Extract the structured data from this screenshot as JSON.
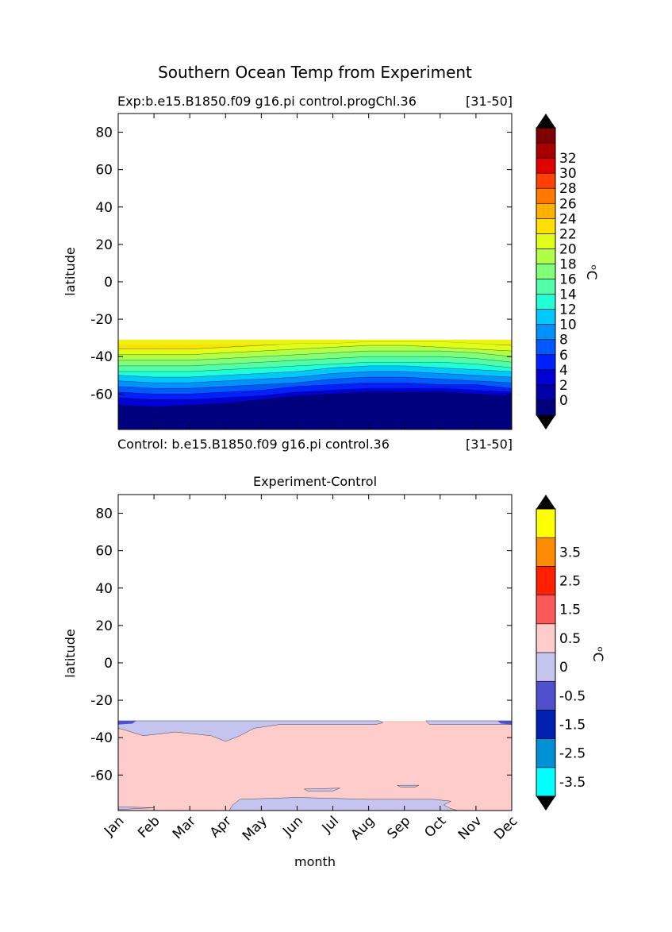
{
  "figure": {
    "suptitle": "Southern Ocean Temp from Experiment"
  },
  "chart_data": [
    {
      "type": "heatmap",
      "title": "",
      "subtitle_left": "Exp:b.e15.B1850.f09 g16.pi control.progChl.36",
      "subtitle_right": "[31-50]",
      "footer_left": "Control: b.e15.B1850.f09 g16.pi control.36",
      "footer_right": "[31-50]",
      "xlabel": "",
      "ylabel": "latitude",
      "ylim": [
        -79,
        90
      ],
      "xlim": [
        0,
        11
      ],
      "yticks": [
        80,
        60,
        40,
        20,
        0,
        -20,
        -40,
        -60
      ],
      "xticks": [],
      "colorbar": {
        "label": "ᵒC",
        "levels": [
          -2,
          0,
          2,
          4,
          6,
          8,
          10,
          12,
          14,
          16,
          18,
          20,
          22,
          24,
          26,
          28,
          30,
          32,
          34
        ],
        "tick_labels": [
          "0",
          "2",
          "4",
          "6",
          "8",
          "10",
          "12",
          "14",
          "16",
          "18",
          "20",
          "22",
          "24",
          "26",
          "28",
          "30",
          "32"
        ],
        "colors": [
          "#00007f",
          "#0000a8",
          "#0000d4",
          "#0020ff",
          "#0058ff",
          "#0090ff",
          "#00c8ff",
          "#20ffd8",
          "#50ff a8",
          "#80ff78",
          "#b0ff48",
          "#e0ff18",
          "#ffe000",
          "#ffb000",
          "#ff7800",
          "#ff4000",
          "#e00000",
          "#a80000",
          "#7f0000"
        ],
        "extend": "both",
        "extend_colors": [
          "#000000",
          "#000000"
        ]
      },
      "data": {
        "months": [
          "Jan",
          "Feb",
          "Mar",
          "Apr",
          "May",
          "Jun",
          "Jul",
          "Aug",
          "Sep",
          "Oct",
          "Nov",
          "Dec"
        ],
        "lat_north_edge": -31,
        "isotherm_latitudes": {
          "0": [
            -66,
            -67,
            -66,
            -65,
            -63,
            -61,
            -60,
            -59,
            -59,
            -59,
            -60,
            -61
          ],
          "2": [
            -62,
            -63,
            -63,
            -62,
            -61,
            -59,
            -58,
            -57,
            -57,
            -57,
            -58,
            -59
          ],
          "4": [
            -59,
            -60,
            -60,
            -59,
            -58,
            -56,
            -55,
            -54,
            -54,
            -55,
            -55,
            -57
          ],
          "6": [
            -56,
            -57,
            -57,
            -56,
            -55,
            -54,
            -52,
            -51,
            -51,
            -52,
            -53,
            -54
          ],
          "8": [
            -53,
            -54,
            -54,
            -53,
            -52,
            -51,
            -49,
            -48,
            -48,
            -49,
            -50,
            -51
          ],
          "10": [
            -50,
            -51,
            -51,
            -50,
            -49,
            -48,
            -46,
            -45,
            -45,
            -46,
            -47,
            -48
          ],
          "12": [
            -48,
            -48,
            -48,
            -47,
            -46,
            -45,
            -44,
            -43,
            -43,
            -43,
            -44,
            -46
          ],
          "14": [
            -45,
            -45,
            -45,
            -44,
            -43,
            -42,
            -41,
            -40,
            -40,
            -40,
            -41,
            -43
          ],
          "16": [
            -42,
            -42,
            -42,
            -41,
            -40,
            -39,
            -38,
            -37,
            -37,
            -37,
            -38,
            -40
          ],
          "18": [
            -39,
            -39,
            -39,
            -38,
            -37,
            -36,
            -35,
            -34,
            -34,
            -35,
            -36,
            -37
          ],
          "20": [
            -36,
            -36,
            -36,
            -35,
            -34,
            -33,
            -33,
            -32,
            -32,
            -32,
            -33,
            -34
          ]
        }
      }
    },
    {
      "type": "heatmap",
      "title": "Experiment-Control",
      "xlabel": "month",
      "ylabel": "latitude",
      "ylim": [
        -79,
        90
      ],
      "xlim": [
        0,
        11
      ],
      "yticks": [
        80,
        60,
        40,
        20,
        0,
        -20,
        -40,
        -60
      ],
      "xticks": [
        "Jan",
        "Feb",
        "Mar",
        "Apr",
        "May",
        "Jun",
        "Jul",
        "Aug",
        "Sep",
        "Oct",
        "Nov",
        "Dec"
      ],
      "colorbar": {
        "label": "ᵒC",
        "tick_labels": [
          "-3.5",
          "-2.5",
          "-1.5",
          "-0.5",
          "0",
          "0.5",
          "1.5",
          "2.5",
          "3.5"
        ],
        "colors": [
          "#00ffff",
          "#0090d8",
          "#0020b0",
          "#5050cc",
          "#c4c4ee",
          "#ffcccc",
          "#ff5858",
          "#ff2000",
          "#ff8c00",
          "#ffff00"
        ],
        "extend": "both",
        "extend_colors": [
          "#000000",
          "#000000"
        ]
      },
      "data": {
        "months": [
          "Jan",
          "Feb",
          "Mar",
          "Apr",
          "May",
          "Jun",
          "Jul",
          "Aug",
          "Sep",
          "Oct",
          "Nov",
          "Dec"
        ],
        "lat_north_edge": -31,
        "background_bin": "0 to 0.5",
        "regions_bin": "-0.5 to 0"
      }
    }
  ]
}
